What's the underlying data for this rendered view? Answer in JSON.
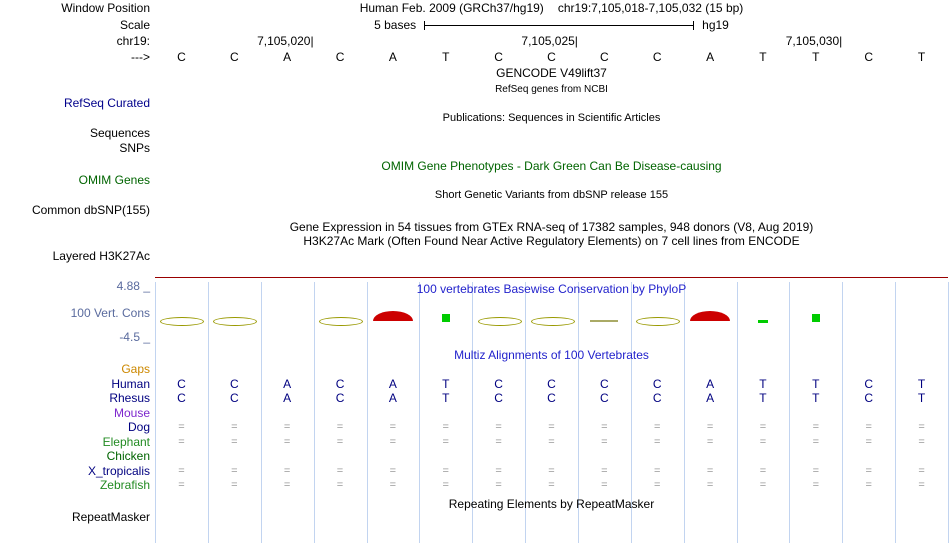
{
  "header": {
    "window_position_label": "Window Position",
    "assembly": "Human Feb. 2009 (GRCh37/hg19)",
    "position": "chr19:7,105,018-7,105,032 (15 bp)",
    "scale_label": "Scale",
    "scale_text": "5 bases",
    "scale_right": "hg19",
    "chrom_label": "chr19:",
    "direction_label": "--->",
    "ticks": [
      {
        "label": "7,105,020|",
        "base": 3
      },
      {
        "label": "7,105,025|",
        "base": 8
      },
      {
        "label": "7,105,030|",
        "base": 13
      }
    ]
  },
  "sequence": [
    "C",
    "C",
    "A",
    "C",
    "A",
    "T",
    "C",
    "C",
    "C",
    "C",
    "A",
    "T",
    "T",
    "C",
    "T"
  ],
  "tracks": {
    "gencode_title": "GENCODE V49lift37",
    "gencode_subtitle": "RefSeq genes from NCBI",
    "refseq_label": "RefSeq Curated",
    "publications_title": "Publications: Sequences in Scientific Articles",
    "sequences_label": "Sequences",
    "snps_label": "SNPs",
    "omim_title": "OMIM Gene Phenotypes - Dark Green Can Be Disease-causing",
    "omim_label": "OMIM Genes",
    "dbsnp_title": "Short Genetic Variants from dbSNP release 155",
    "dbsnp_label": "Common dbSNP(155)",
    "gtex_title": "Gene Expression in 54 tissues from GTEx RNA-seq of 17382 samples, 948 donors (V8, Aug 2019)",
    "h3k27ac_title": "H3K27Ac Mark (Often Found Near Active Regulatory Elements) on 7 cell lines from ENCODE",
    "h3k27ac_label": "Layered H3K27Ac",
    "repeatmasker_title": "Repeating Elements by RepeatMasker",
    "repeatmasker_label": "RepeatMasker"
  },
  "conservation": {
    "title": "100 vertebrates Basewise Conservation by PhyloP",
    "label": "100 Vert. Cons",
    "max": "4.88 _",
    "min": "-4.5 _",
    "glyphs": [
      {
        "base": 0,
        "shape": "ellipse",
        "color": "#999900"
      },
      {
        "base": 1,
        "shape": "ellipse",
        "color": "#999900"
      },
      {
        "base": 3,
        "shape": "ellipse",
        "color": "#999900"
      },
      {
        "base": 4,
        "shape": "arc",
        "color": "#cc0000"
      },
      {
        "base": 5,
        "shape": "square",
        "color": "#00cc00"
      },
      {
        "base": 6,
        "shape": "ellipse",
        "color": "#999900"
      },
      {
        "base": 7,
        "shape": "ellipse",
        "color": "#999900"
      },
      {
        "base": 8,
        "shape": "dash",
        "color": "#aaaa66"
      },
      {
        "base": 9,
        "shape": "ellipse",
        "color": "#999900"
      },
      {
        "base": 10,
        "shape": "arc",
        "color": "#cc0000"
      },
      {
        "base": 11,
        "shape": "gdash",
        "color": "#00cc00"
      },
      {
        "base": 12,
        "shape": "square",
        "color": "#00cc00"
      }
    ]
  },
  "multiz": {
    "title": "Multiz Alignments of 100 Vertebrates",
    "eq_symbol": "=",
    "eq_color": "#999999",
    "seq_color": "#000080",
    "rows": [
      {
        "name": "Gaps",
        "color": "#cc8800",
        "type": "empty"
      },
      {
        "name": "Human",
        "color": "#000080",
        "type": "seq",
        "cells": [
          "C",
          "C",
          "A",
          "C",
          "A",
          "T",
          "C",
          "C",
          "C",
          "C",
          "A",
          "T",
          "T",
          "C",
          "T"
        ]
      },
      {
        "name": "Rhesus",
        "color": "#000080",
        "type": "seq",
        "cells": [
          "C",
          "C",
          "A",
          "C",
          "A",
          "T",
          "C",
          "C",
          "C",
          "C",
          "A",
          "T",
          "T",
          "C",
          "T"
        ]
      },
      {
        "name": "Mouse",
        "color": "#7d26cd",
        "type": "empty"
      },
      {
        "name": "Dog",
        "color": "#000080",
        "type": "eq"
      },
      {
        "name": "Elephant",
        "color": "#228b22",
        "type": "eq"
      },
      {
        "name": "Chicken",
        "color": "#006400",
        "type": "empty"
      },
      {
        "name": "X_tropicalis",
        "color": "#000080",
        "type": "eq"
      },
      {
        "name": "Zebrafish",
        "color": "#228b22",
        "type": "eq"
      }
    ]
  },
  "colors": {
    "navy": "#00008b",
    "dark_green": "#006400",
    "title_blue": "#2222cc",
    "cons_label": "#5a6b9e",
    "h3k27ac_line": "#990000",
    "guideline": "#c2d4f0"
  }
}
